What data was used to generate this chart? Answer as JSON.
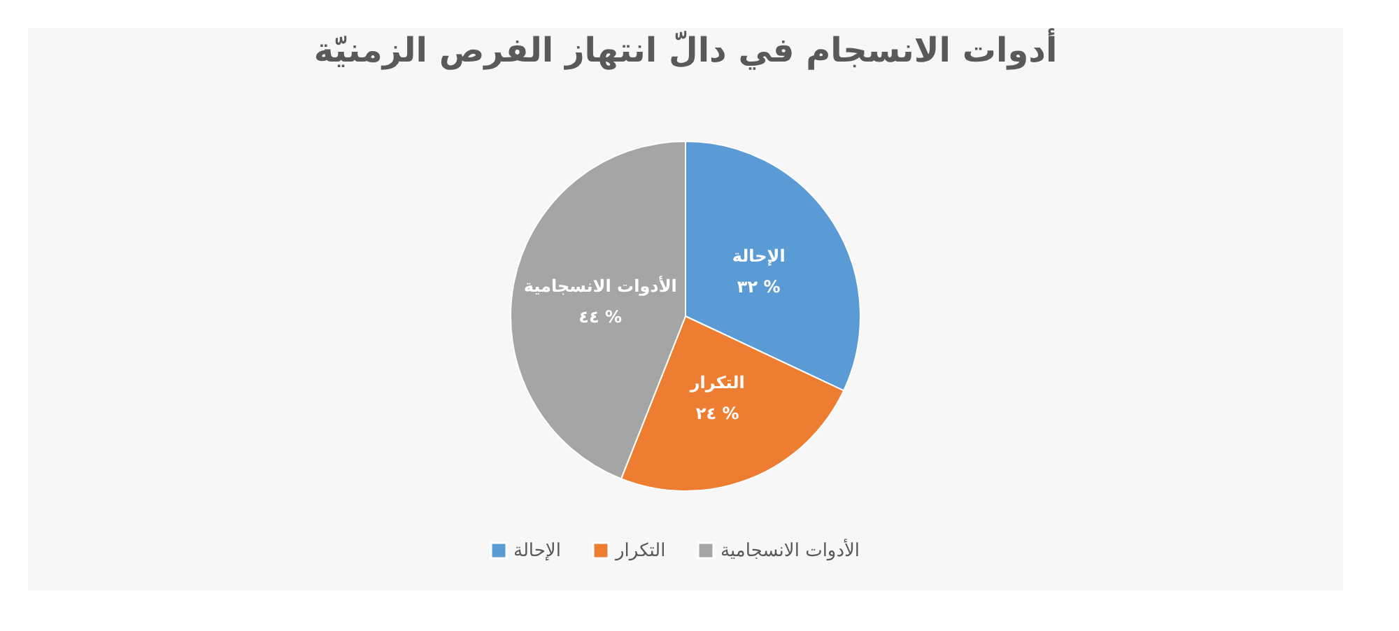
{
  "chart_data": {
    "type": "pie",
    "title": "أدوات الانسجام في دالّ انتهاز الفرص الزمنيّة",
    "categories": [
      "الإحالة",
      "التكرار",
      "الأدوات الانسجامية"
    ],
    "values": [
      32,
      24,
      44
    ],
    "colors": [
      "#5b9bd5",
      "#ed7d31",
      "#a5a5a5"
    ],
    "value_labels": [
      "٣٢ %",
      "٢٤ %",
      "٤٤ %"
    ],
    "legend": "bottom"
  }
}
